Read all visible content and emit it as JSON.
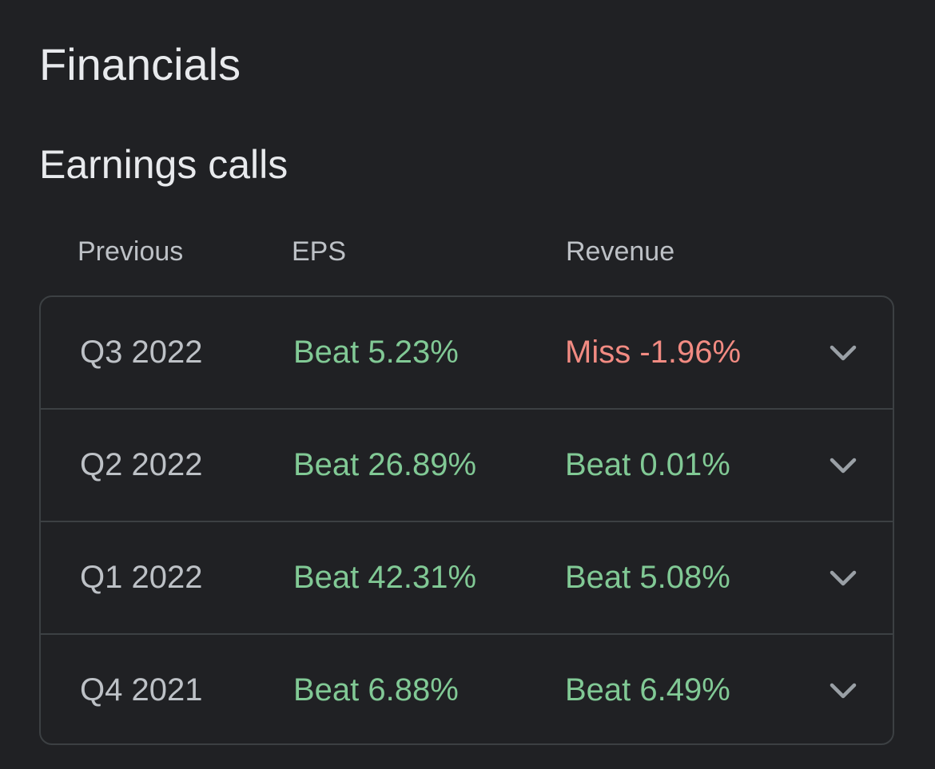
{
  "page_title": "Financials",
  "section_title": "Earnings calls",
  "columns": {
    "previous": "Previous",
    "eps": "EPS",
    "revenue": "Revenue"
  },
  "colors": {
    "beat": "#81c995",
    "miss": "#f28b82",
    "chevron": "#9aa0a6"
  },
  "rows": [
    {
      "quarter": "Q3 2022",
      "eps": "Beat 5.23%",
      "eps_status": "beat",
      "revenue": "Miss -1.96%",
      "revenue_status": "miss",
      "expand_icon": "chevron-down-icon"
    },
    {
      "quarter": "Q2 2022",
      "eps": "Beat 26.89%",
      "eps_status": "beat",
      "revenue": "Beat 0.01%",
      "revenue_status": "beat",
      "expand_icon": "chevron-down-icon"
    },
    {
      "quarter": "Q1 2022",
      "eps": "Beat 42.31%",
      "eps_status": "beat",
      "revenue": "Beat 5.08%",
      "revenue_status": "beat",
      "expand_icon": "chevron-down-icon"
    },
    {
      "quarter": "Q4 2021",
      "eps": "Beat 6.88%",
      "eps_status": "beat",
      "revenue": "Beat 6.49%",
      "revenue_status": "beat",
      "expand_icon": "chevron-down-icon"
    }
  ]
}
